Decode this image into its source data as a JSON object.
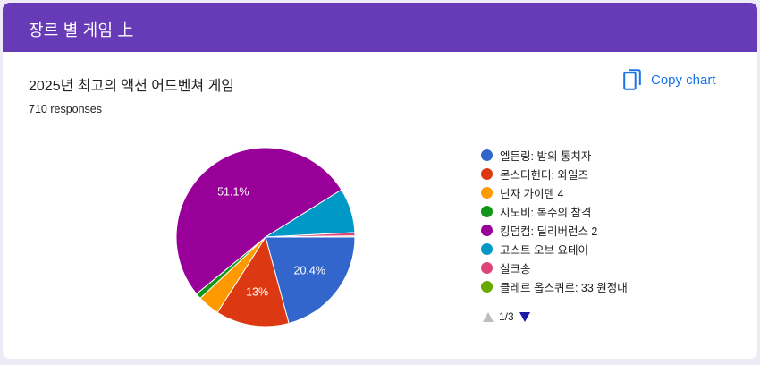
{
  "header": {
    "title": "장르 별 게임 上"
  },
  "question": {
    "title": "2025년 최고의 액션 어드벤쳐 게임",
    "responses": "710 responses",
    "copy_label": "Copy chart"
  },
  "chart_data": {
    "type": "pie",
    "labels": [
      "엘든링: 밤의 통치자",
      "몬스터헌터: 와일즈",
      "닌자 가이덴 4",
      "시노비: 복수의 참격",
      "킹덤컴: 딜리버런스 2",
      "고스트 오브 요테이",
      "실크송",
      "클레르 옵스퀴르: 33 원정대"
    ],
    "values": [
      20.4,
      13.0,
      3.9,
      1.0,
      51.1,
      7.9,
      0.6,
      0.2
    ],
    "data_labels": [
      "20.4%",
      "13%",
      "",
      "",
      "51.1%",
      "",
      "",
      ""
    ],
    "colors": [
      "#3366cc",
      "#dc3912",
      "#ff9900",
      "#109618",
      "#990099",
      "#0099c6",
      "#dd4477",
      "#66aa00"
    ],
    "legend_position": "right"
  },
  "pager": {
    "text": "1/3"
  },
  "icons": {
    "copy": "copy-icon",
    "up": "arrow-up-icon",
    "down": "arrow-down-icon"
  }
}
